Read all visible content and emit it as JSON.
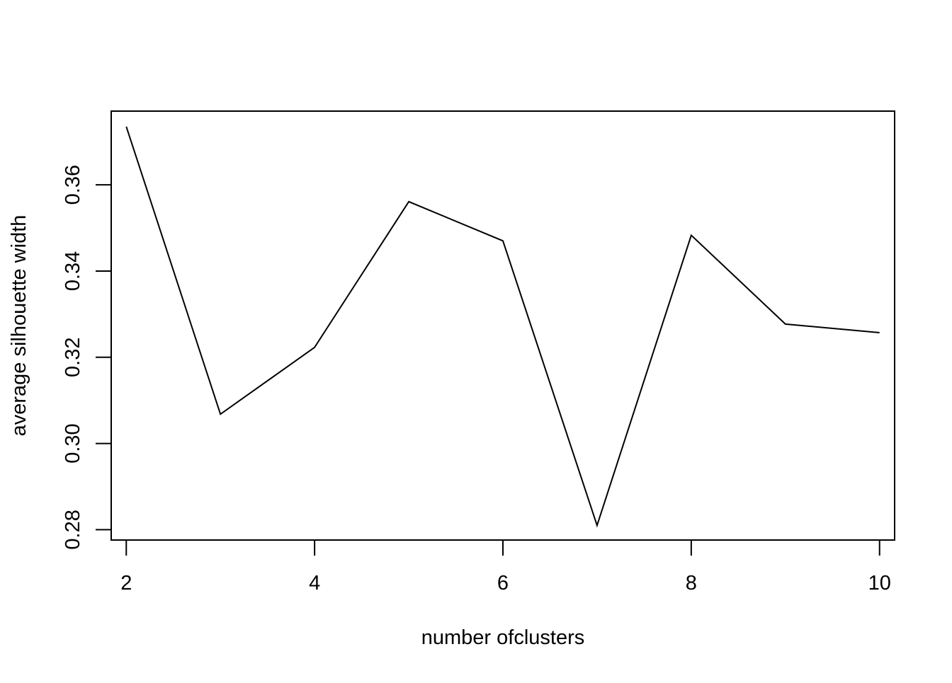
{
  "chart_data": {
    "type": "line",
    "title": "",
    "xlabel": "number ofclusters",
    "ylabel": "average silhouette width",
    "x": [
      2,
      3,
      4,
      5,
      6,
      7,
      8,
      9,
      10
    ],
    "series": [
      {
        "values": [
          0.3735,
          0.3068,
          0.3223,
          0.3561,
          0.347,
          0.281,
          0.3483,
          0.3277,
          0.3257
        ]
      }
    ],
    "xlim": [
      1.84,
      10.16
    ],
    "ylim": [
      0.2776,
      0.3771
    ],
    "x_ticks": [
      2,
      4,
      6,
      8,
      10
    ],
    "x_tick_labels": [
      "2",
      "4",
      "6",
      "8",
      "10"
    ],
    "y_ticks": [
      0.28,
      0.3,
      0.32,
      0.34,
      0.36
    ],
    "y_tick_labels": [
      "0.28",
      "0.30",
      "0.32",
      "0.34",
      "0.36"
    ],
    "grid": false,
    "legend": "none",
    "line_color": "#000000"
  }
}
